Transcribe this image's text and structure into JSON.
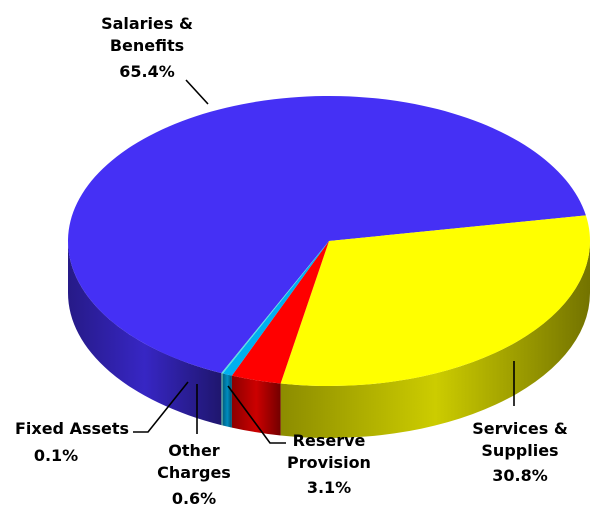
{
  "chart_data": {
    "type": "pie",
    "style": "3d",
    "title": "",
    "legend": "none",
    "slices": [
      {
        "label_lines": [
          "Salaries &",
          "Benefits"
        ],
        "value_label": "65.4%",
        "value": 65.4,
        "color": "#4530F5"
      },
      {
        "label_lines": [
          "Services &",
          "Supplies"
        ],
        "value_label": "30.8%",
        "value": 30.8,
        "color": "#FFFF00"
      },
      {
        "label_lines": [
          "Reserve",
          "Provision"
        ],
        "value_label": "3.1%",
        "value": 3.1,
        "color": "#FF0000"
      },
      {
        "label_lines": [
          "Other",
          "Charges"
        ],
        "value_label": "0.6%",
        "value": 0.6,
        "color": "#00B0F0"
      },
      {
        "label_lines": [
          "Fixed Assets"
        ],
        "value_label": "0.1%",
        "value": 0.1,
        "color": "#5BE0E0"
      }
    ]
  }
}
